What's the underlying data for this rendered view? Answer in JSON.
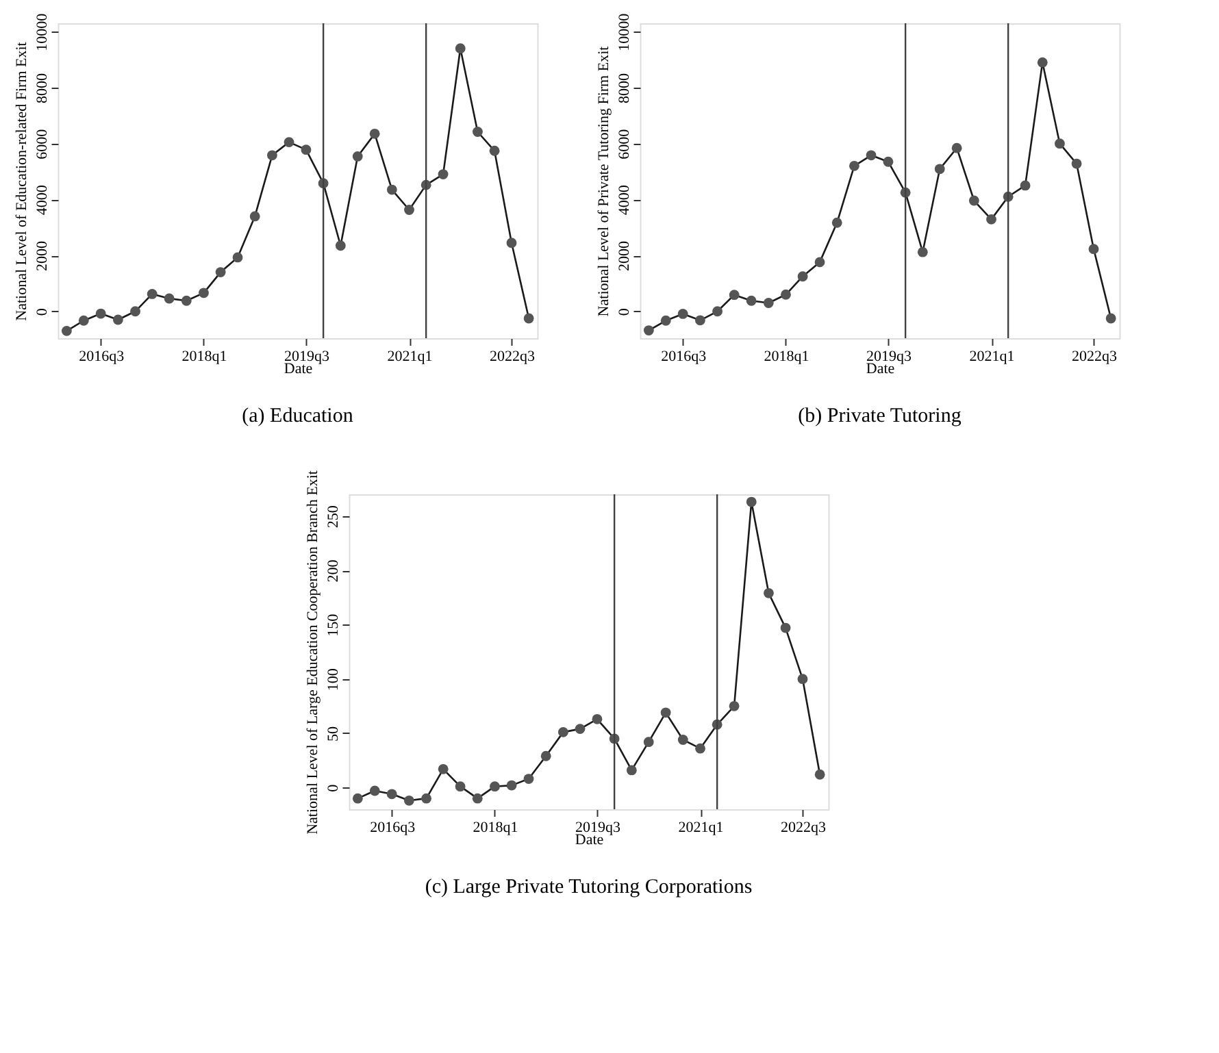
{
  "chart_data": [
    {
      "type": "line",
      "title": "(a)  Education",
      "xlabel": "Date",
      "ylabel": "National Level of Education-related Firm Exit",
      "x": [
        "2016-01",
        "2016-04",
        "2016-07",
        "2016-10",
        "2017-01",
        "2017-04",
        "2017-07",
        "2017-10",
        "2018-01",
        "2018-04",
        "2018-07",
        "2018-10",
        "2019-01",
        "2019-04",
        "2019-07",
        "2019-10",
        "2020-01",
        "2020-04",
        "2020-07",
        "2020-10",
        "2021-01",
        "2021-04",
        "2021-07",
        "2021-10",
        "2022-01",
        "2022-04",
        "2022-07",
        "2022-10"
      ],
      "series": [
        {
          "color": "#555555",
          "values": [
            -700,
            -330,
            -80,
            -300,
            0,
            620,
            460,
            380,
            660,
            1400,
            1930,
            3400,
            5580,
            6050,
            5780,
            4580,
            2350,
            5540,
            6350,
            4350,
            3630,
            4520,
            4900,
            9400,
            6420,
            5740,
            2450,
            -250
          ]
        }
      ],
      "xlim": [
        "2015-11-15",
        "2022-11-15"
      ],
      "xticks": [
        {
          "value": "2016-07",
          "label": "2016q3"
        },
        {
          "value": "2018-01",
          "label": "2018q1"
        },
        {
          "value": "2019-07",
          "label": "2019q3"
        },
        {
          "value": "2021-01",
          "label": "2021q1"
        },
        {
          "value": "2022-07",
          "label": "2022q3"
        }
      ],
      "ylim": [
        -960,
        10300
      ],
      "yticks": [
        0,
        2000,
        4000,
        6000,
        8000,
        10000
      ],
      "ref_lines": [
        {
          "axis": "x",
          "value": "2019-10",
          "color": "#404040"
        },
        {
          "axis": "x",
          "value": "2021-04",
          "color": "#404040"
        }
      ],
      "marker": "circle",
      "line_style": "solid",
      "grid": false
    },
    {
      "type": "line",
      "title": "(b)  Private Tutoring",
      "xlabel": "Date",
      "ylabel": "National Level of Private Tutoring Firm Exit",
      "x": [
        "2016-01",
        "2016-04",
        "2016-07",
        "2016-10",
        "2017-01",
        "2017-04",
        "2017-07",
        "2017-10",
        "2018-01",
        "2018-04",
        "2018-07",
        "2018-10",
        "2019-01",
        "2019-04",
        "2019-07",
        "2019-10",
        "2020-01",
        "2020-04",
        "2020-07",
        "2020-10",
        "2021-01",
        "2021-04",
        "2021-07",
        "2021-10",
        "2022-01",
        "2022-04",
        "2022-07",
        "2022-10"
      ],
      "series": [
        {
          "color": "#555555",
          "values": [
            -680,
            -330,
            -90,
            -320,
            0,
            590,
            380,
            300,
            600,
            1250,
            1760,
            3170,
            5200,
            5580,
            5350,
            4250,
            2120,
            5090,
            5840,
            3960,
            3290,
            4100,
            4500,
            8900,
            6000,
            5280,
            2230,
            -250
          ]
        }
      ],
      "xlim": [
        "2015-11-15",
        "2022-11-15"
      ],
      "xticks": [
        {
          "value": "2016-07",
          "label": "2016q3"
        },
        {
          "value": "2018-01",
          "label": "2018q1"
        },
        {
          "value": "2019-07",
          "label": "2019q3"
        },
        {
          "value": "2021-01",
          "label": "2021q1"
        },
        {
          "value": "2022-07",
          "label": "2022q3"
        }
      ],
      "ylim": [
        -960,
        10300
      ],
      "yticks": [
        0,
        2000,
        4000,
        6000,
        8000,
        10000
      ],
      "ref_lines": [
        {
          "axis": "x",
          "value": "2019-10",
          "color": "#404040"
        },
        {
          "axis": "x",
          "value": "2021-04",
          "color": "#404040"
        }
      ],
      "marker": "circle",
      "line_style": "solid",
      "grid": false
    },
    {
      "type": "line",
      "title": "(c)  Large Private Tutoring Corporations",
      "xlabel": "Date",
      "ylabel": "National Level of Large Education Cooperation Branch Exit",
      "x": [
        "2016-01",
        "2016-04",
        "2016-07",
        "2016-10",
        "2017-01",
        "2017-04",
        "2017-07",
        "2017-10",
        "2018-01",
        "2018-04",
        "2018-07",
        "2018-10",
        "2019-01",
        "2019-04",
        "2019-07",
        "2019-10",
        "2020-01",
        "2020-04",
        "2020-07",
        "2020-10",
        "2021-01",
        "2021-04",
        "2021-07",
        "2021-10",
        "2022-01",
        "2022-04",
        "2022-07",
        "2022-10"
      ],
      "series": [
        {
          "color": "#555555",
          "values": [
            -10,
            -3,
            -6,
            -12,
            -10,
            17,
            1,
            -10,
            1,
            2,
            8,
            29,
            51,
            54,
            63,
            45,
            16,
            42,
            69,
            44,
            36,
            58,
            75,
            263,
            179,
            147,
            100,
            12
          ]
        }
      ],
      "xlim": [
        "2015-11-15",
        "2022-11-15"
      ],
      "xticks": [
        {
          "value": "2016-07",
          "label": "2016q3"
        },
        {
          "value": "2018-01",
          "label": "2018q1"
        },
        {
          "value": "2019-07",
          "label": "2019q3"
        },
        {
          "value": "2021-01",
          "label": "2021q1"
        },
        {
          "value": "2022-07",
          "label": "2022q3"
        }
      ],
      "ylim": [
        -20,
        270
      ],
      "yticks": [
        0,
        50,
        100,
        150,
        200,
        250
      ],
      "ref_lines": [
        {
          "axis": "x",
          "value": "2019-10",
          "color": "#404040"
        },
        {
          "axis": "x",
          "value": "2021-04",
          "color": "#404040"
        }
      ],
      "marker": "circle",
      "line_style": "solid",
      "grid": false
    }
  ]
}
